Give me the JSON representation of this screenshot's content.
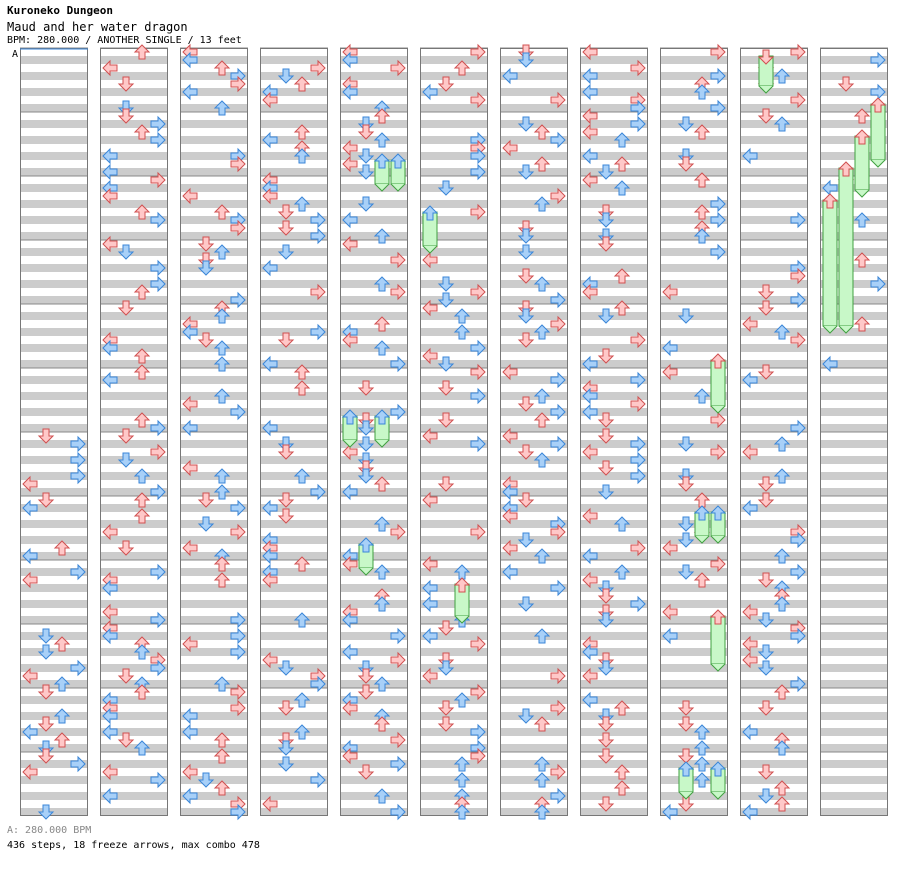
{
  "header": {
    "site": "Kuroneko Dungeon",
    "song": "Maud and her water dragon",
    "info": "BPM: 280.000 / ANOTHER SINGLE / 13 feet",
    "marker": "A"
  },
  "footer": {
    "bpm": "A: 280.000 BPM",
    "stats": "436 steps, 18 freeze arrows, max combo 478"
  },
  "colors": {
    "red": "#ffc8c8",
    "red_stroke": "#d05050",
    "blue": "#a8d0f8",
    "blue_stroke": "#3a86d8",
    "freeze": "#c8f8c8",
    "freeze_stroke": "#40a040",
    "stripe": "#cccccc"
  },
  "chart_data": {
    "type": "step-chart",
    "mode": "ANOTHER SINGLE",
    "bpm": 280,
    "difficulty_feet": 13,
    "steps": 436,
    "freeze_arrows": 18,
    "max_combo": 478
  }
}
